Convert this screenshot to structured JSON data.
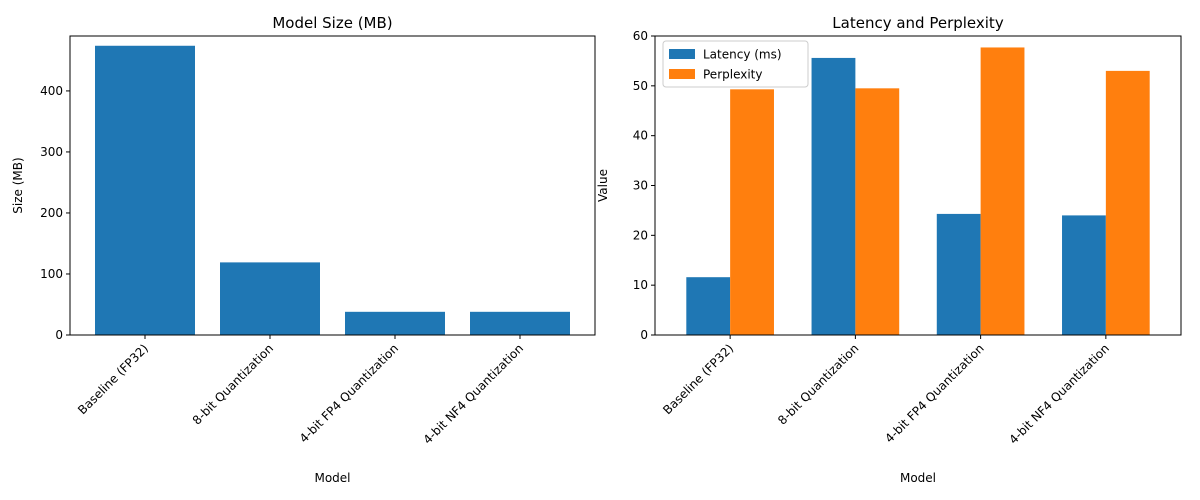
{
  "colors": {
    "blue": "#1f77b4",
    "orange": "#ff7f0e"
  },
  "chart_data": [
    {
      "type": "bar",
      "title": "Model Size (MB)",
      "xlabel": "Model",
      "ylabel": "Size (MB)",
      "categories": [
        "Baseline (FP32)",
        "8-bit Quantization",
        "4-bit FP4 Quantization",
        "4-bit NF4 Quantization"
      ],
      "series": [
        {
          "values": [
            474,
            119,
            38,
            38
          ],
          "color": "#1f77b4"
        }
      ],
      "ylim": [
        0,
        490
      ],
      "yticks": [
        0,
        100,
        200,
        300,
        400
      ],
      "grid": false,
      "legend": null
    },
    {
      "type": "bar",
      "title": "Latency and Perplexity",
      "xlabel": "Model",
      "ylabel": "Value",
      "categories": [
        "Baseline (FP32)",
        "8-bit Quantization",
        "4-bit FP4 Quantization",
        "4-bit NF4 Quantization"
      ],
      "series": [
        {
          "name": "Latency (ms)",
          "values": [
            11.6,
            55.6,
            24.3,
            24.0
          ],
          "color": "#1f77b4"
        },
        {
          "name": "Perplexity",
          "values": [
            49.3,
            49.5,
            57.7,
            53.0
          ],
          "color": "#ff7f0e"
        }
      ],
      "ylim": [
        0,
        60
      ],
      "yticks": [
        0,
        10,
        20,
        30,
        40,
        50,
        60
      ],
      "grid": false,
      "legend": "upper-left"
    }
  ]
}
